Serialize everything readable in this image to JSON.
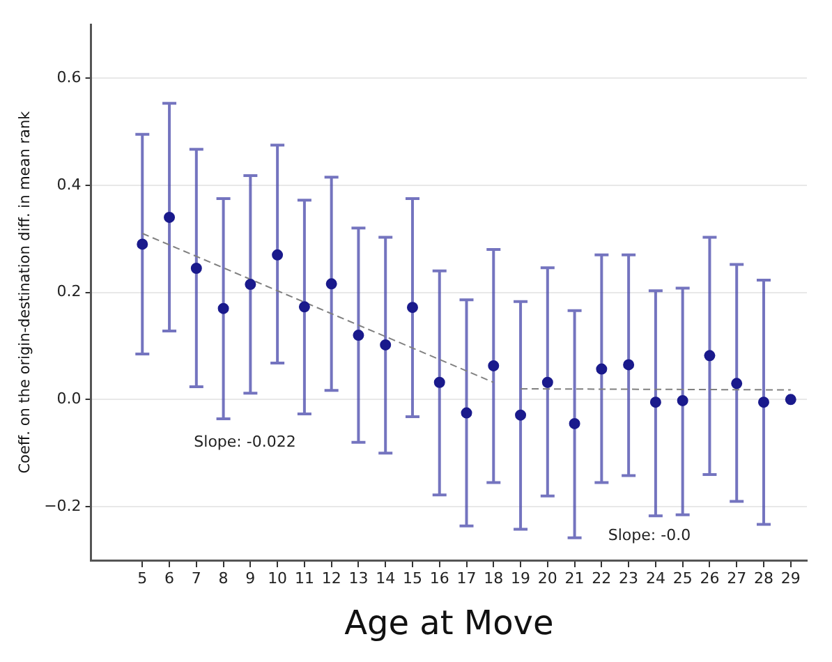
{
  "chart_data": {
    "type": "scatter",
    "xlabel": "Age at Move",
    "ylabel": "Coeff. on the origin-destination diff. in mean rank",
    "x": [
      5,
      6,
      7,
      8,
      9,
      10,
      11,
      12,
      13,
      14,
      15,
      16,
      17,
      18,
      19,
      20,
      21,
      22,
      23,
      24,
      25,
      26,
      27,
      28,
      29
    ],
    "series": [
      {
        "color": "#1a1a8c",
        "marker": "circle",
        "values": [
          0.29,
          0.34,
          0.245,
          0.17,
          0.215,
          0.27,
          0.173,
          0.216,
          0.12,
          0.102,
          0.172,
          0.032,
          -0.025,
          0.063,
          -0.029,
          0.032,
          -0.045,
          0.057,
          0.065,
          -0.005,
          -0.002,
          0.082,
          0.03,
          -0.005,
          0.0
        ],
        "errors": [
          [
            0.085,
            0.495
          ],
          [
            0.128,
            0.553
          ],
          [
            0.024,
            0.467
          ],
          [
            -0.036,
            0.375
          ],
          [
            0.012,
            0.418
          ],
          [
            0.068,
            0.475
          ],
          [
            -0.027,
            0.372
          ],
          [
            0.017,
            0.415
          ],
          [
            -0.08,
            0.32
          ],
          [
            -0.1,
            0.303
          ],
          [
            -0.032,
            0.375
          ],
          [
            -0.178,
            0.24
          ],
          [
            -0.236,
            0.186
          ],
          [
            -0.155,
            0.28
          ],
          [
            -0.242,
            0.183
          ],
          [
            -0.18,
            0.246
          ],
          [
            -0.258,
            0.166
          ],
          [
            -0.155,
            0.27
          ],
          [
            -0.142,
            0.27
          ],
          [
            -0.217,
            0.203
          ],
          [
            -0.215,
            0.208
          ],
          [
            -0.14,
            0.303
          ],
          [
            -0.19,
            0.252
          ],
          [
            -0.233,
            0.223
          ],
          null
        ]
      },
      {
        "type": "line",
        "color": "#808080",
        "line_style": "dashed",
        "marker": "none",
        "x": [
          5,
          18
        ],
        "values": [
          0.31,
          0.032
        ]
      },
      {
        "type": "line",
        "color": "#808080",
        "line_style": "dashed",
        "marker": "none",
        "x": [
          19,
          29
        ],
        "values": [
          0.02,
          0.018
        ]
      }
    ],
    "annotations": [
      "Slope: -0.022",
      "Slope: -0.0"
    ],
    "xlim": [
      3.1,
      29.6
    ],
    "xticks": [
      5,
      6,
      7,
      8,
      9,
      10,
      11,
      12,
      13,
      14,
      15,
      16,
      17,
      18,
      19,
      20,
      21,
      22,
      23,
      24,
      25,
      26,
      27,
      28,
      29
    ],
    "ylim": [
      -0.3,
      0.7
    ],
    "yticks": [
      {
        "value": -0.2,
        "label": "−0.2"
      },
      {
        "value": 0,
        "label": "0.0"
      },
      {
        "value": 0.2,
        "label": "0.2"
      },
      {
        "value": 0.4,
        "label": "0.4"
      },
      {
        "value": 0.6,
        "label": "0.6"
      }
    ],
    "grid": "y",
    "legend": false
  }
}
